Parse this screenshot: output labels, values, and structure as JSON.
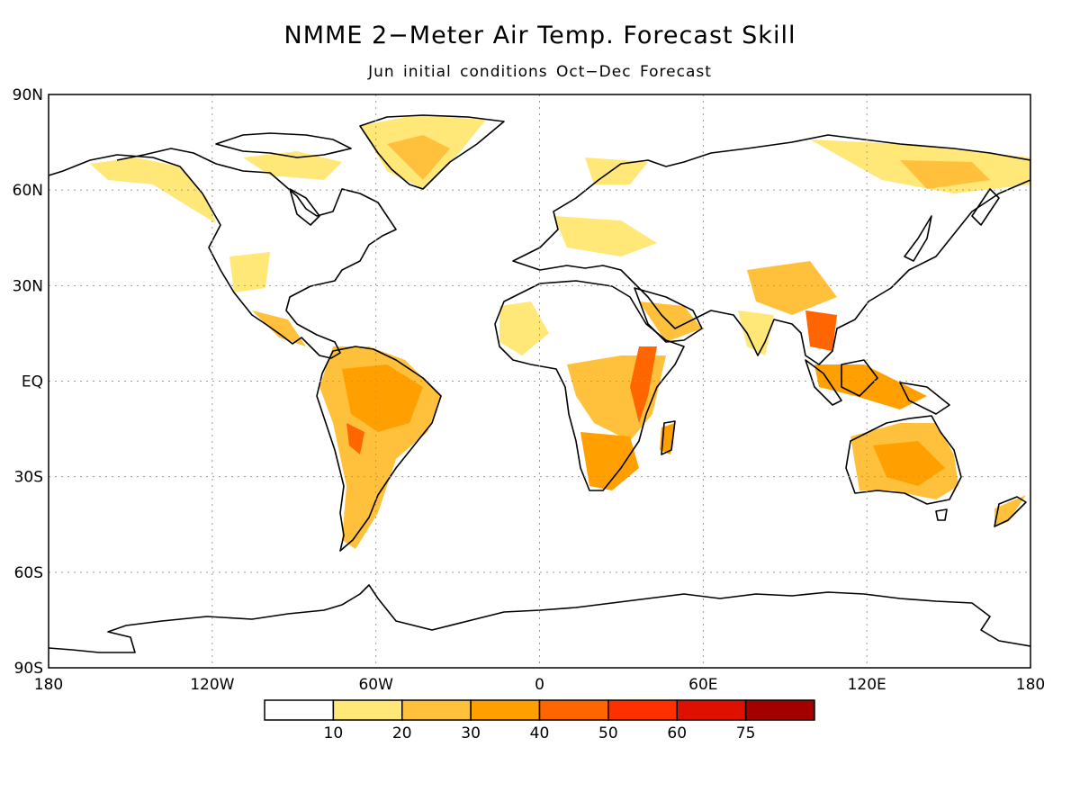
{
  "title": "NMME 2−Meter Air Temp. Forecast Skill",
  "subtitle": "Jun initial conditions   Oct−Dec Forecast",
  "map": {
    "lat_labels": [
      {
        "lat": 90,
        "label": "90N"
      },
      {
        "lat": 60,
        "label": "60N"
      },
      {
        "lat": 30,
        "label": "30N"
      },
      {
        "lat": 0,
        "label": "EQ"
      },
      {
        "lat": -30,
        "label": "30S"
      },
      {
        "lat": -60,
        "label": "60S"
      },
      {
        "lat": -90,
        "label": "90S"
      }
    ],
    "lon_labels": [
      {
        "lon": -180,
        "label": "180"
      },
      {
        "lon": -120,
        "label": "120W"
      },
      {
        "lon": -60,
        "label": "60W"
      },
      {
        "lon": 0,
        "label": "0"
      },
      {
        "lon": 60,
        "label": "60E"
      },
      {
        "lon": 120,
        "label": "120E"
      },
      {
        "lon": 180,
        "label": "180"
      }
    ],
    "gridlines": "dotted",
    "coastline_color": "#000000"
  },
  "legend": {
    "labels": [
      "10",
      "20",
      "30",
      "40",
      "50",
      "60",
      "75"
    ],
    "colors": [
      "#ffffff",
      "#ffe778",
      "#ffc13c",
      "#ffa000",
      "#ff6500",
      "#ff3000",
      "#e01000",
      "#a50000"
    ]
  }
}
